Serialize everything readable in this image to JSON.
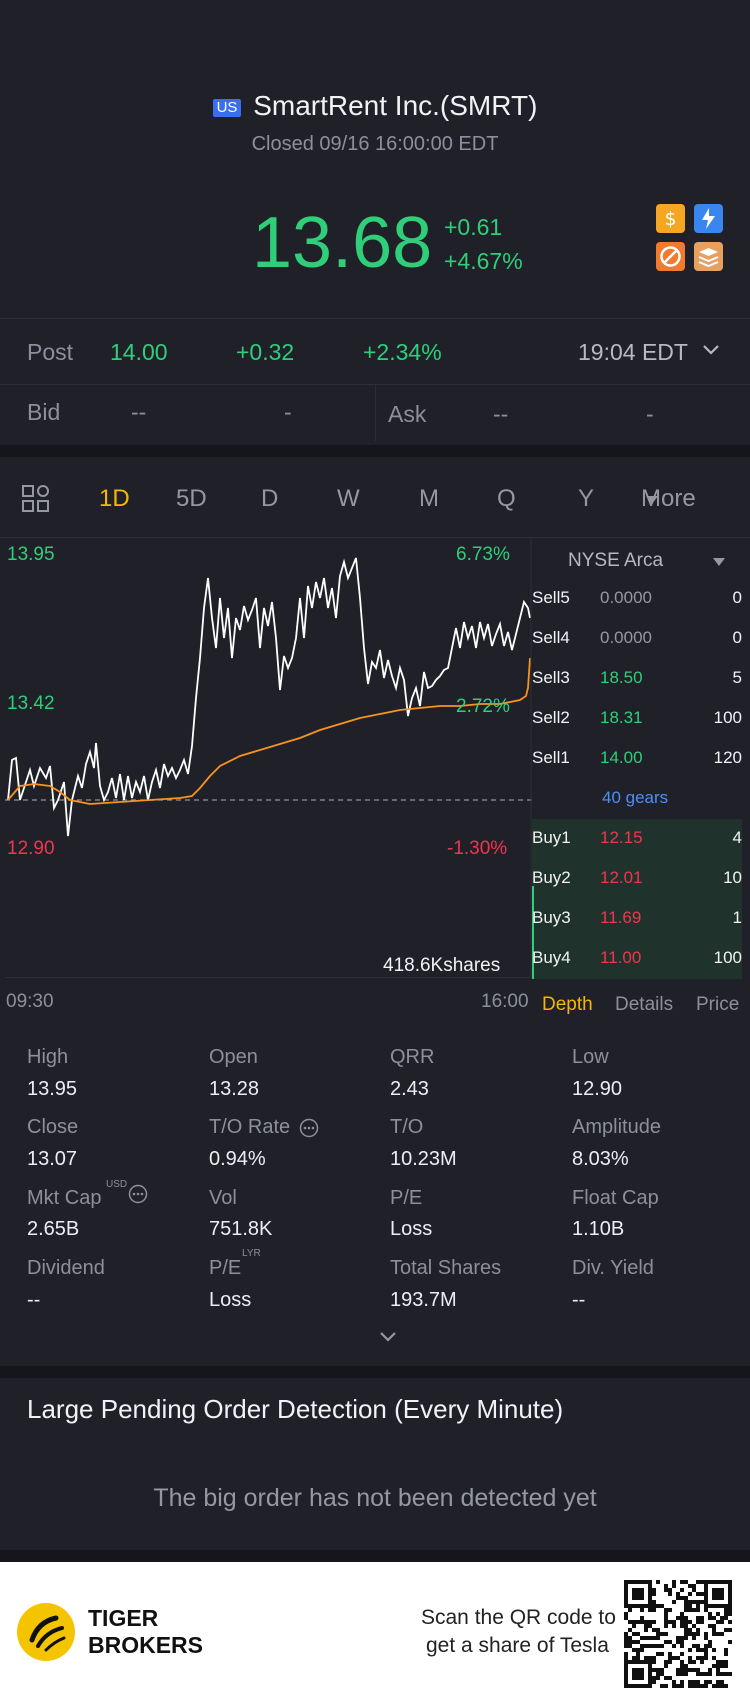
{
  "header": {
    "market_badge": "US",
    "stock_name": "SmartRent Inc.(SMRT)",
    "status": "Closed 09/16 16:00:00 EDT",
    "price": "13.68",
    "change": "+0.61",
    "change_pct": "+4.67%",
    "icons": [
      "dollar-icon",
      "lightning-icon",
      "no-short-icon",
      "layers-icon"
    ]
  },
  "post": {
    "label": "Post",
    "price": "14.00",
    "change": "+0.32",
    "change_pct": "+2.34%",
    "time": "19:04 EDT"
  },
  "bid_ask": {
    "bid_label": "Bid",
    "bid_price": "--",
    "bid_size": "-",
    "ask_label": "Ask",
    "ask_price": "--",
    "ask_size": "-"
  },
  "tabs": {
    "items": [
      "1D",
      "5D",
      "D",
      "W",
      "M",
      "Q",
      "Y",
      "More"
    ],
    "active": "1D"
  },
  "chart_data": {
    "type": "line",
    "series": [],
    "y_high": "13.95",
    "y_mid": "13.42",
    "y_low": "12.90",
    "pct_high": "6.73%",
    "pct_mid": "2.72%",
    "pct_low": "-1.30%",
    "volume": "418.6Kshares",
    "x_start": "09:30",
    "x_end": "16:00",
    "ylim": [
      12.9,
      13.95
    ]
  },
  "orderbook": {
    "exchange": "NYSE Arca",
    "sells": [
      {
        "label": "Sell5",
        "price": "0.0000",
        "qty": "0"
      },
      {
        "label": "Sell4",
        "price": "0.0000",
        "qty": "0"
      },
      {
        "label": "Sell3",
        "price": "18.50",
        "qty": "5"
      },
      {
        "label": "Sell2",
        "price": "18.31",
        "qty": "100"
      },
      {
        "label": "Sell1",
        "price": "14.00",
        "qty": "120"
      }
    ],
    "gears": "40 gears",
    "buys": [
      {
        "label": "Buy1",
        "price": "12.15",
        "qty": "4"
      },
      {
        "label": "Buy2",
        "price": "12.01",
        "qty": "10"
      },
      {
        "label": "Buy3",
        "price": "11.69",
        "qty": "1"
      },
      {
        "label": "Buy4",
        "price": "11.00",
        "qty": "100"
      }
    ],
    "tabs": [
      "Depth",
      "Details",
      "Price"
    ]
  },
  "stats": {
    "high": {
      "label": "High",
      "value": "13.95"
    },
    "open": {
      "label": "Open",
      "value": "13.28"
    },
    "qrr": {
      "label": "QRR",
      "value": "2.43"
    },
    "low": {
      "label": "Low",
      "value": "12.90"
    },
    "close": {
      "label": "Close",
      "value": "13.07"
    },
    "to_rate": {
      "label": "T/O Rate",
      "value": "0.94%"
    },
    "to": {
      "label": "T/O",
      "value": "10.23M"
    },
    "amplitude": {
      "label": "Amplitude",
      "value": "8.03%"
    },
    "mkt_cap": {
      "label": "Mkt Cap",
      "sup": "USD",
      "value": "2.65B"
    },
    "vol": {
      "label": "Vol",
      "value": "751.8K"
    },
    "pe": {
      "label": "P/E",
      "value": "Loss"
    },
    "float_cap": {
      "label": "Float Cap",
      "value": "1.10B"
    },
    "dividend": {
      "label": "Dividend",
      "value": "--"
    },
    "pe_lyr": {
      "label": "P/E",
      "sup": "LYR",
      "value": "Loss"
    },
    "total_shares": {
      "label": "Total Shares",
      "value": "193.7M"
    },
    "div_yield": {
      "label": "Div. Yield",
      "value": "--"
    }
  },
  "large_order": {
    "title": "Large Pending Order Detection (Every Minute)",
    "message": "The big order has not been detected yet"
  },
  "footer": {
    "brand_line1": "TIGER",
    "brand_line2": "BROKERS",
    "qr_line1": "Scan the QR code to",
    "qr_line2": "get a share of Tesla"
  }
}
